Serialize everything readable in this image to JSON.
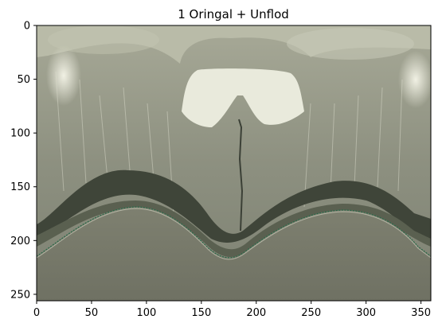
{
  "figure": {
    "title": "1  Oringal + Unflod",
    "x_ticks": [
      "0",
      "50",
      "100",
      "150",
      "200",
      "250",
      "300",
      "350"
    ],
    "y_ticks": [
      "0",
      "50",
      "100",
      "150",
      "200",
      "250"
    ],
    "x_tick_values": [
      0,
      50,
      100,
      150,
      200,
      250,
      300,
      350
    ],
    "y_tick_values": [
      0,
      50,
      100,
      150,
      200,
      250
    ],
    "x_range": [
      0,
      359
    ],
    "y_range": [
      0,
      256
    ],
    "y_inverted": true,
    "image_kind": "grayscale unfolded panoramic image",
    "colors": {
      "background_top": "#8f9282",
      "bright_region": "#e8e9dc",
      "dark_band": "#3e4438",
      "lower_region": "#767868",
      "border_line": "#2a6a4a"
    }
  }
}
